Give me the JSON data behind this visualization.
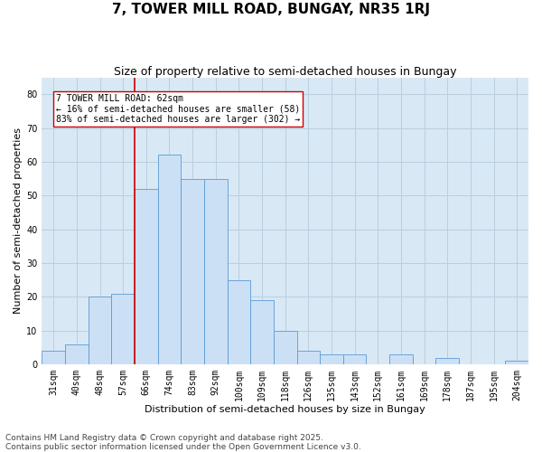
{
  "title": "7, TOWER MILL ROAD, BUNGAY, NR35 1RJ",
  "subtitle": "Size of property relative to semi-detached houses in Bungay",
  "xlabel": "Distribution of semi-detached houses by size in Bungay",
  "ylabel": "Number of semi-detached properties",
  "categories": [
    "31sqm",
    "40sqm",
    "48sqm",
    "57sqm",
    "66sqm",
    "74sqm",
    "83sqm",
    "92sqm",
    "100sqm",
    "109sqm",
    "118sqm",
    "126sqm",
    "135sqm",
    "143sqm",
    "152sqm",
    "161sqm",
    "169sqm",
    "178sqm",
    "187sqm",
    "195sqm",
    "204sqm"
  ],
  "values": [
    4,
    6,
    20,
    21,
    52,
    62,
    55,
    55,
    25,
    19,
    10,
    4,
    3,
    3,
    0,
    3,
    0,
    2,
    0,
    0,
    1
  ],
  "bar_color": "#cce0f5",
  "bar_edge_color": "#5b9bd5",
  "property_line_x": 3.5,
  "property_label": "7 TOWER MILL ROAD: 62sqm",
  "pct_smaller": "16% of semi-detached houses are smaller (58)",
  "pct_larger": "83% of semi-detached houses are larger (302)",
  "annotation_box_color": "#ffffff",
  "annotation_box_edge": "#cc0000",
  "property_line_color": "#cc0000",
  "grid_color": "#b8cfe0",
  "background_color": "#d9e8f5",
  "ylim": [
    0,
    85
  ],
  "yticks": [
    0,
    10,
    20,
    30,
    40,
    50,
    60,
    70,
    80
  ],
  "title_fontsize": 11,
  "subtitle_fontsize": 9,
  "axis_label_fontsize": 8,
  "tick_fontsize": 7,
  "annotation_fontsize": 7,
  "footer_fontsize": 6.5,
  "footer": "Contains HM Land Registry data © Crown copyright and database right 2025.\nContains public sector information licensed under the Open Government Licence v3.0."
}
